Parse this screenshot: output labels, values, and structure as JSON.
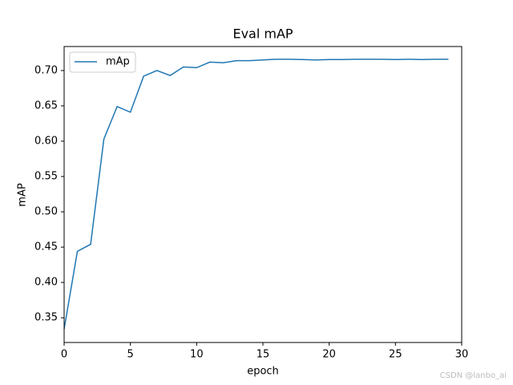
{
  "chart_data": {
    "type": "line",
    "title": "Eval mAP",
    "x_label": "epoch",
    "y_label": "mAP",
    "x": [
      0,
      1,
      2,
      3,
      4,
      5,
      6,
      7,
      8,
      9,
      10,
      11,
      12,
      13,
      14,
      15,
      16,
      17,
      18,
      19,
      20,
      21,
      22,
      23,
      24,
      25,
      26,
      27,
      28,
      29
    ],
    "series": [
      {
        "name": "mAp",
        "color": "#1f77b4",
        "values": [
          0.334,
          0.444,
          0.454,
          0.603,
          0.649,
          0.641,
          0.692,
          0.7,
          0.693,
          0.705,
          0.704,
          0.712,
          0.711,
          0.714,
          0.714,
          0.715,
          0.716,
          0.716,
          0.7155,
          0.715,
          0.7155,
          0.7155,
          0.716,
          0.716,
          0.716,
          0.7155,
          0.716,
          0.7155,
          0.716,
          0.716
        ]
      }
    ],
    "xlim": [
      0,
      30
    ],
    "xticks": [
      0,
      5,
      10,
      15,
      20,
      25,
      30
    ],
    "ylim": [
      0.315,
      0.734
    ],
    "yticks": [
      {
        "value": 0.35,
        "label": "0.35"
      },
      {
        "value": 0.4,
        "label": "0.40"
      },
      {
        "value": 0.45,
        "label": "0.45"
      },
      {
        "value": 0.5,
        "label": "0.50"
      },
      {
        "value": 0.55,
        "label": "0.55"
      },
      {
        "value": 0.6,
        "label": "0.60"
      },
      {
        "value": 0.65,
        "label": "0.65"
      },
      {
        "value": 0.7,
        "label": "0.70"
      }
    ],
    "legend": "upper left",
    "grid": false,
    "watermark": "CSDN @lanbo_ai"
  }
}
